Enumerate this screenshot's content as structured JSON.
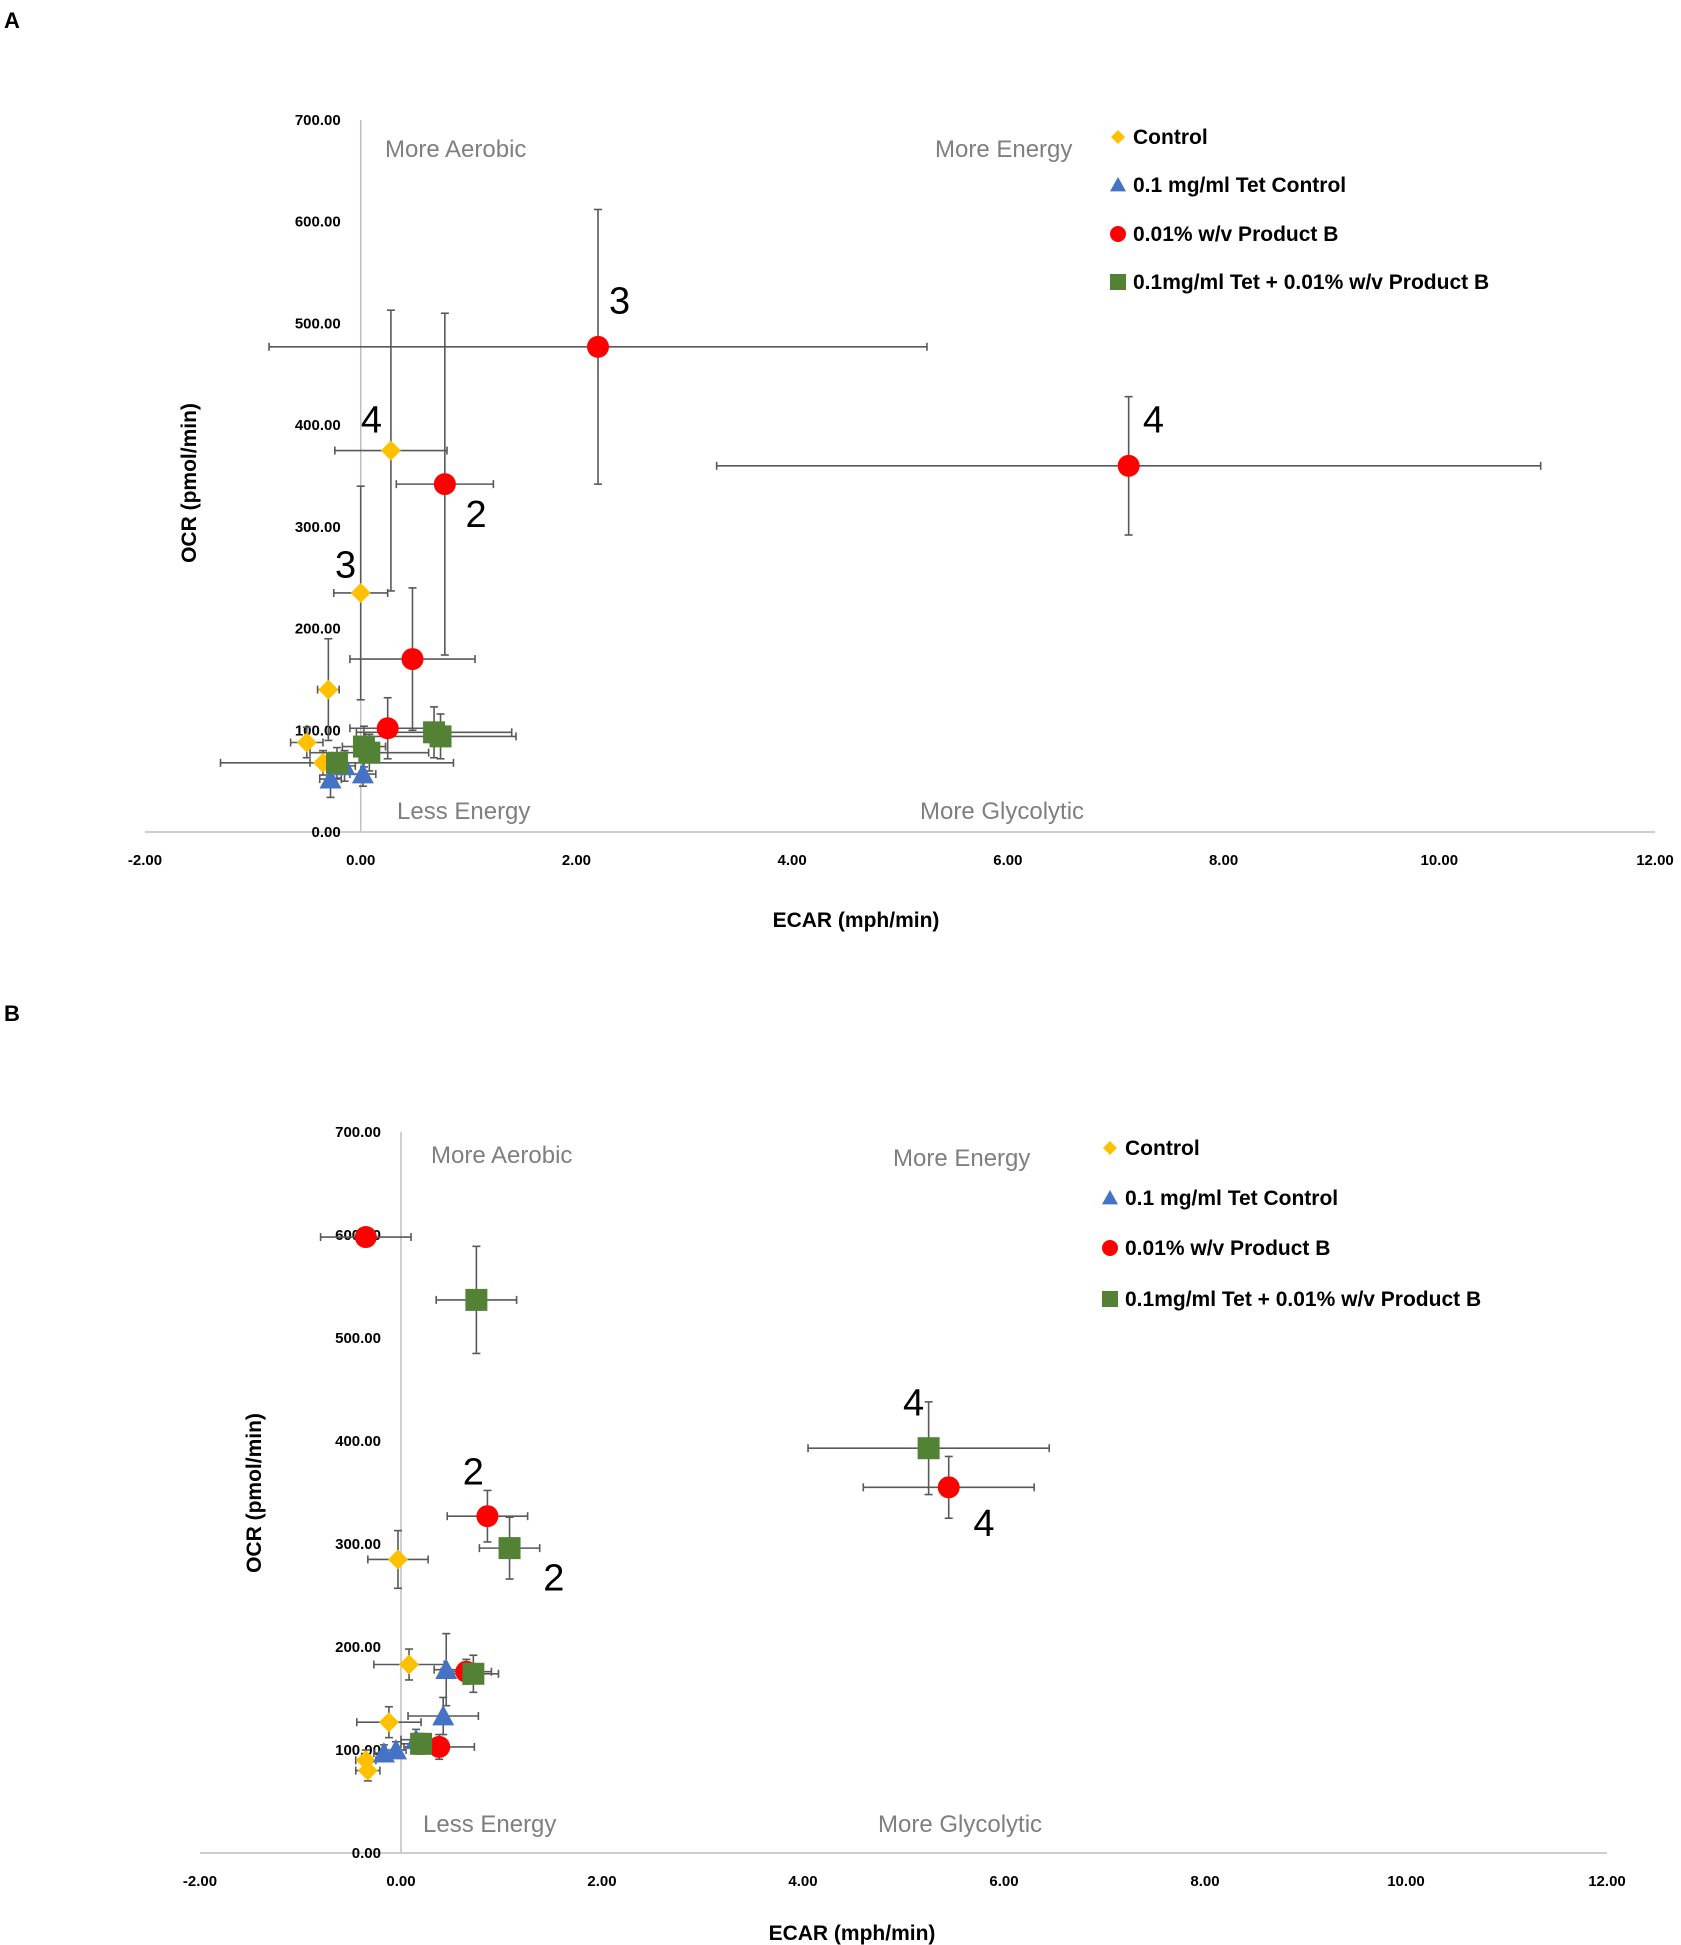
{
  "chart_data": [
    {
      "panel": "A",
      "type": "scatter",
      "xlabel": "ECAR (mph/min)",
      "ylabel": "OCR (pmol/min)",
      "xlim": [
        -2,
        12
      ],
      "ylim": [
        0,
        700
      ],
      "xticks": [
        "-2.00",
        "0.00",
        "2.00",
        "4.00",
        "6.00",
        "8.00",
        "10.00",
        "12.00"
      ],
      "yticks": [
        "0.00",
        "100.00",
        "200.00",
        "300.00",
        "400.00",
        "500.00",
        "600.00",
        "700.00"
      ],
      "quadrants": {
        "top_left": "More Aerobic",
        "top_right": "More Energy",
        "bottom_left": "Less Energy",
        "bottom_right": "More Glycolytic"
      },
      "legend": [
        "Control",
        "0.1 mg/ml Tet Control",
        "0.01% w/v Product B",
        "0.1mg/ml Tet + 0.01% w/v Product B"
      ],
      "series": [
        {
          "name": "Control",
          "marker": "diamond",
          "color": "#ffc000",
          "points": [
            {
              "x": -0.5,
              "y": 88,
              "xerr": 0.15,
              "yerr": 15
            },
            {
              "x": -0.35,
              "y": 68,
              "xerr": 0.12,
              "yerr": 12
            },
            {
              "x": -0.3,
              "y": 140,
              "xerr": 0.1,
              "yerr": 50
            },
            {
              "x": 0.0,
              "y": 235,
              "xerr": 0.25,
              "yerr": 105
            },
            {
              "x": 0.28,
              "y": 375,
              "xerr": 0.52,
              "yerr": 138
            }
          ]
        },
        {
          "name": "0.1 mg/ml Tet Control",
          "marker": "triangle",
          "color": "#4472c4",
          "points": [
            {
              "x": -0.28,
              "y": 52,
              "xerr": 0.1,
              "yerr": 18
            },
            {
              "x": -0.15,
              "y": 65,
              "xerr": 0.1,
              "yerr": 15
            },
            {
              "x": 0.02,
              "y": 57,
              "xerr": 0.12,
              "yerr": 12
            }
          ]
        },
        {
          "name": "0.01% w/v Product B",
          "marker": "circle",
          "color": "#ff0000",
          "points": [
            {
              "x": 0.25,
              "y": 102,
              "xerr": 0.35,
              "yerr": 30
            },
            {
              "x": 0.48,
              "y": 170,
              "xerr": 0.58,
              "yerr": 70
            },
            {
              "x": 0.78,
              "y": 342,
              "xerr": 0.45,
              "yerr": 168
            },
            {
              "x": 2.2,
              "y": 477,
              "xerr": 3.05,
              "yerr": 135
            },
            {
              "x": 7.12,
              "y": 360,
              "xerr": 3.82,
              "yerr": 68
            }
          ]
        },
        {
          "name": "0.1mg/ml Tet + 0.01% w/v Product B",
          "marker": "square",
          "color": "#548235",
          "points": [
            {
              "x": -0.22,
              "y": 68,
              "xerr": 1.08,
              "yerr": 15
            },
            {
              "x": 0.03,
              "y": 84,
              "xerr": 0.2,
              "yerr": 20
            },
            {
              "x": 0.08,
              "y": 78,
              "xerr": 0.55,
              "yerr": 18
            },
            {
              "x": 0.68,
              "y": 98,
              "xerr": 0.72,
              "yerr": 25
            },
            {
              "x": 0.74,
              "y": 94,
              "xerr": 0.7,
              "yerr": 22
            }
          ]
        }
      ],
      "annotations": [
        {
          "text": "3",
          "x": 2.4,
          "y": 510
        },
        {
          "text": "4",
          "x": 7.35,
          "y": 393
        },
        {
          "text": "4",
          "x": 0.1,
          "y": 393
        },
        {
          "text": "2",
          "x": 1.07,
          "y": 300
        },
        {
          "text": "3",
          "x": -0.14,
          "y": 250
        }
      ]
    },
    {
      "panel": "B",
      "type": "scatter",
      "xlabel": "ECAR (mph/min)",
      "ylabel": "OCR (pmol/min)",
      "xlim": [
        -2,
        12
      ],
      "ylim": [
        0,
        700
      ],
      "xticks": [
        "-2.00",
        "0.00",
        "2.00",
        "4.00",
        "6.00",
        "8.00",
        "10.00",
        "12.00"
      ],
      "yticks": [
        "0.00",
        "100.00",
        "200.00",
        "300.00",
        "400.00",
        "500.00",
        "600.00",
        "700.00"
      ],
      "quadrants": {
        "top_left": "More Aerobic",
        "top_right": "More Energy",
        "bottom_left": "Less Energy",
        "bottom_right": "More Glycolytic"
      },
      "legend": [
        "Control",
        "0.1 mg/ml Tet Control",
        "0.01% w/v Product B",
        "0.1mg/ml Tet + 0.01% w/v Product B"
      ],
      "series": [
        {
          "name": "Control",
          "marker": "diamond",
          "color": "#ffc000",
          "points": [
            {
              "x": -0.33,
              "y": 80,
              "xerr": 0.12,
              "yerr": 10
            },
            {
              "x": -0.35,
              "y": 90,
              "xerr": 0.1,
              "yerr": 10
            },
            {
              "x": -0.12,
              "y": 127,
              "xerr": 0.32,
              "yerr": 15
            },
            {
              "x": -0.03,
              "y": 285,
              "xerr": 0.3,
              "yerr": 28
            },
            {
              "x": 0.08,
              "y": 183,
              "xerr": 0.35,
              "yerr": 15
            }
          ]
        },
        {
          "name": "0.1 mg/ml Tet Control",
          "marker": "triangle",
          "color": "#4472c4",
          "points": [
            {
              "x": -0.17,
              "y": 97,
              "xerr": 0.1,
              "yerr": 8
            },
            {
              "x": -0.05,
              "y": 100,
              "xerr": 0.1,
              "yerr": 8
            },
            {
              "x": 0.15,
              "y": 110,
              "xerr": 0.15,
              "yerr": 10
            },
            {
              "x": 0.42,
              "y": 133,
              "xerr": 0.35,
              "yerr": 18
            },
            {
              "x": 0.45,
              "y": 178,
              "xerr": 0.12,
              "yerr": 35
            }
          ]
        },
        {
          "name": "0.01% w/v Product B",
          "marker": "circle",
          "color": "#ff0000",
          "points": [
            {
              "x": -0.35,
              "y": 598,
              "xerr": 0.45,
              "yerr": 8
            },
            {
              "x": 0.38,
              "y": 103,
              "xerr": 0.35,
              "yerr": 12
            },
            {
              "x": 0.65,
              "y": 176,
              "xerr": 0.25,
              "yerr": 12
            },
            {
              "x": 0.86,
              "y": 327,
              "xerr": 0.4,
              "yerr": 25
            },
            {
              "x": 5.45,
              "y": 355,
              "xerr": 0.85,
              "yerr": 30
            }
          ]
        },
        {
          "name": "0.1mg/ml Tet + 0.01% w/v Product B",
          "marker": "square",
          "color": "#548235",
          "points": [
            {
              "x": 0.2,
              "y": 106,
              "xerr": 0.2,
              "yerr": 10
            },
            {
              "x": 0.72,
              "y": 174,
              "xerr": 0.25,
              "yerr": 18
            },
            {
              "x": 1.08,
              "y": 296,
              "xerr": 0.3,
              "yerr": 30
            },
            {
              "x": 0.75,
              "y": 537,
              "xerr": 0.4,
              "yerr": 52
            },
            {
              "x": 5.25,
              "y": 393,
              "xerr": 1.2,
              "yerr": 45
            }
          ]
        }
      ],
      "annotations": [
        {
          "text": "4",
          "x": 5.1,
          "y": 425
        },
        {
          "text": "4",
          "x": 5.8,
          "y": 308
        },
        {
          "text": "2",
          "x": 0.72,
          "y": 358
        },
        {
          "text": "2",
          "x": 1.52,
          "y": 255
        }
      ]
    }
  ]
}
